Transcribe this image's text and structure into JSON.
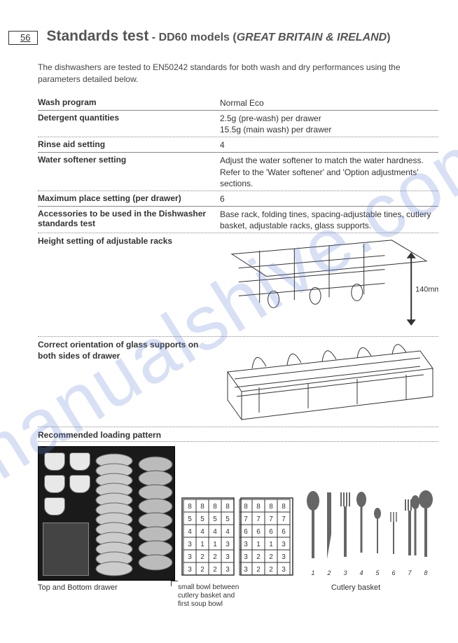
{
  "page_number": "56",
  "title_main": "Standards test",
  "title_sep": " - ",
  "title_model": "DD60 models",
  "title_region": "GREAT BRITAIN & IRELAND",
  "watermark": "manualshive.com",
  "intro": "The dishwashers are tested to EN50242 standards for both wash and dry performances using the parameters detailed below.",
  "rows": {
    "wash_program": {
      "label": "Wash program",
      "value": "Normal Eco"
    },
    "detergent": {
      "label": "Detergent quantities",
      "value": "2.5g (pre-wash) per drawer\n15.5g (main wash) per drawer"
    },
    "rinse_aid": {
      "label": "Rinse aid setting",
      "value": "4"
    },
    "softener": {
      "label": "Water softener setting",
      "value": "Adjust the water softener to match the water hardness. Refer to the 'Water softener' and 'Option adjustments' sections."
    },
    "max_place": {
      "label": "Maximum place setting (per drawer)",
      "value": "6"
    },
    "accessories": {
      "label": "Accessories to be used in the Dishwasher standards test",
      "value": "Base rack, folding tines, spacing-adjustable tines, cutlery basket, adjustable racks, glass supports."
    }
  },
  "height_setting": {
    "label": "Height setting of adjustable racks",
    "dimension": "140mm"
  },
  "glass_orientation": {
    "label": "Correct orientation of glass supports on both sides of drawer"
  },
  "loading": {
    "header": "Recommended loading pattern",
    "caption_left": "Top and Bottom drawer",
    "caption_mid": "small bowl between cutlery basket and first soup bowl",
    "caption_right": "Cutlery basket"
  },
  "basket_grid": {
    "rows": 6,
    "cols_per_half": 4,
    "cell_labels": [
      [
        "8",
        "8",
        "8",
        "8",
        "8",
        "8",
        "8",
        "8"
      ],
      [
        "5",
        "5",
        "5",
        "5",
        "7",
        "7",
        "7",
        "7"
      ],
      [
        "4",
        "4",
        "4",
        "4",
        "6",
        "6",
        "6",
        "6"
      ],
      [
        "3",
        "1",
        "1",
        "3",
        "3",
        "1",
        "1",
        "3"
      ],
      [
        "3",
        "2",
        "2",
        "3",
        "3",
        "2",
        "2",
        "3"
      ],
      [
        "3",
        "2",
        "2",
        "3",
        "3",
        "2",
        "2",
        "3"
      ]
    ]
  },
  "cutlery_numbers": [
    "1",
    "2",
    "3",
    "4",
    "5",
    "6",
    "7",
    "8"
  ],
  "colors": {
    "text": "#333333",
    "dotted_border": "#888888",
    "watermark": "rgba(100,130,220,0.25)",
    "page_bg": "#ffffff",
    "photo_bg": "#1a1a1a"
  },
  "typography": {
    "title_fontsize": 21,
    "subtitle_fontsize": 16,
    "body_fontsize": 12,
    "caption_fontsize": 11
  }
}
